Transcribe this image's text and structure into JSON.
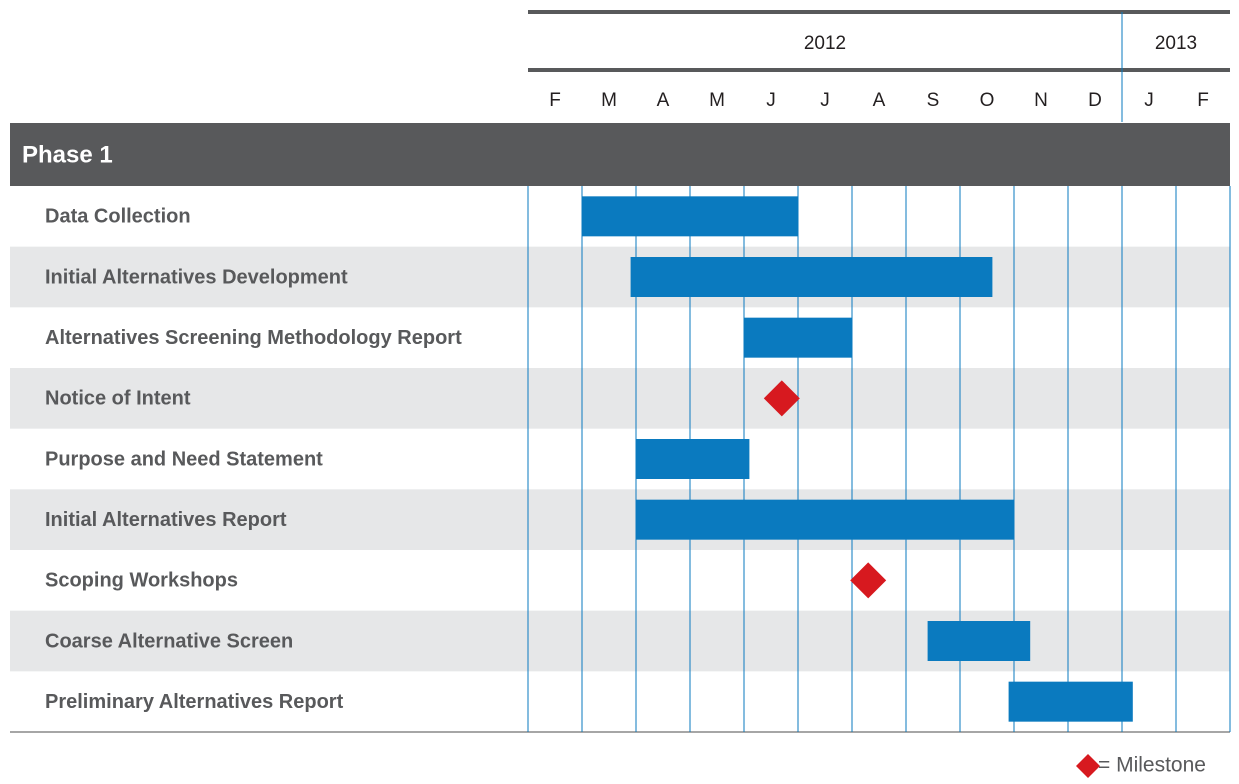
{
  "chart_data": {
    "type": "gantt",
    "years": [
      {
        "label": "2012",
        "months": 11
      },
      {
        "label": "2013",
        "months": 2
      }
    ],
    "categories": [
      "F",
      "M",
      "A",
      "M",
      "J",
      "J",
      "A",
      "S",
      "O",
      "N",
      "D",
      "J",
      "F"
    ],
    "xlim": [
      0,
      13
    ],
    "xticks": [
      0,
      1,
      2,
      3,
      4,
      5,
      6,
      7,
      8,
      9,
      10,
      11,
      12,
      13
    ],
    "phase": "Phase 1",
    "bar_color": "#0a7abf",
    "milestone_color": "#d7191f",
    "tasks": [
      {
        "name": "Data Collection",
        "start": 1.0,
        "end": 5.0
      },
      {
        "name": "Initial Alternatives Development",
        "start": 1.9,
        "end": 8.6
      },
      {
        "name": "Alternatives Screening Methodology Report",
        "start": 4.0,
        "end": 6.0
      },
      {
        "name": "Notice of Intent",
        "milestone": 4.7
      },
      {
        "name": "Purpose and Need Statement",
        "start": 2.0,
        "end": 4.1
      },
      {
        "name": "Initial Alternatives Report",
        "start": 2.0,
        "end": 9.0
      },
      {
        "name": "Scoping Workshops",
        "milestone": 6.3
      },
      {
        "name": "Coarse Alternative Screen",
        "start": 7.4,
        "end": 9.3
      },
      {
        "name": "Preliminary Alternatives Report",
        "start": 8.9,
        "end": 11.2
      }
    ],
    "milestone_label": "= Milestone"
  }
}
